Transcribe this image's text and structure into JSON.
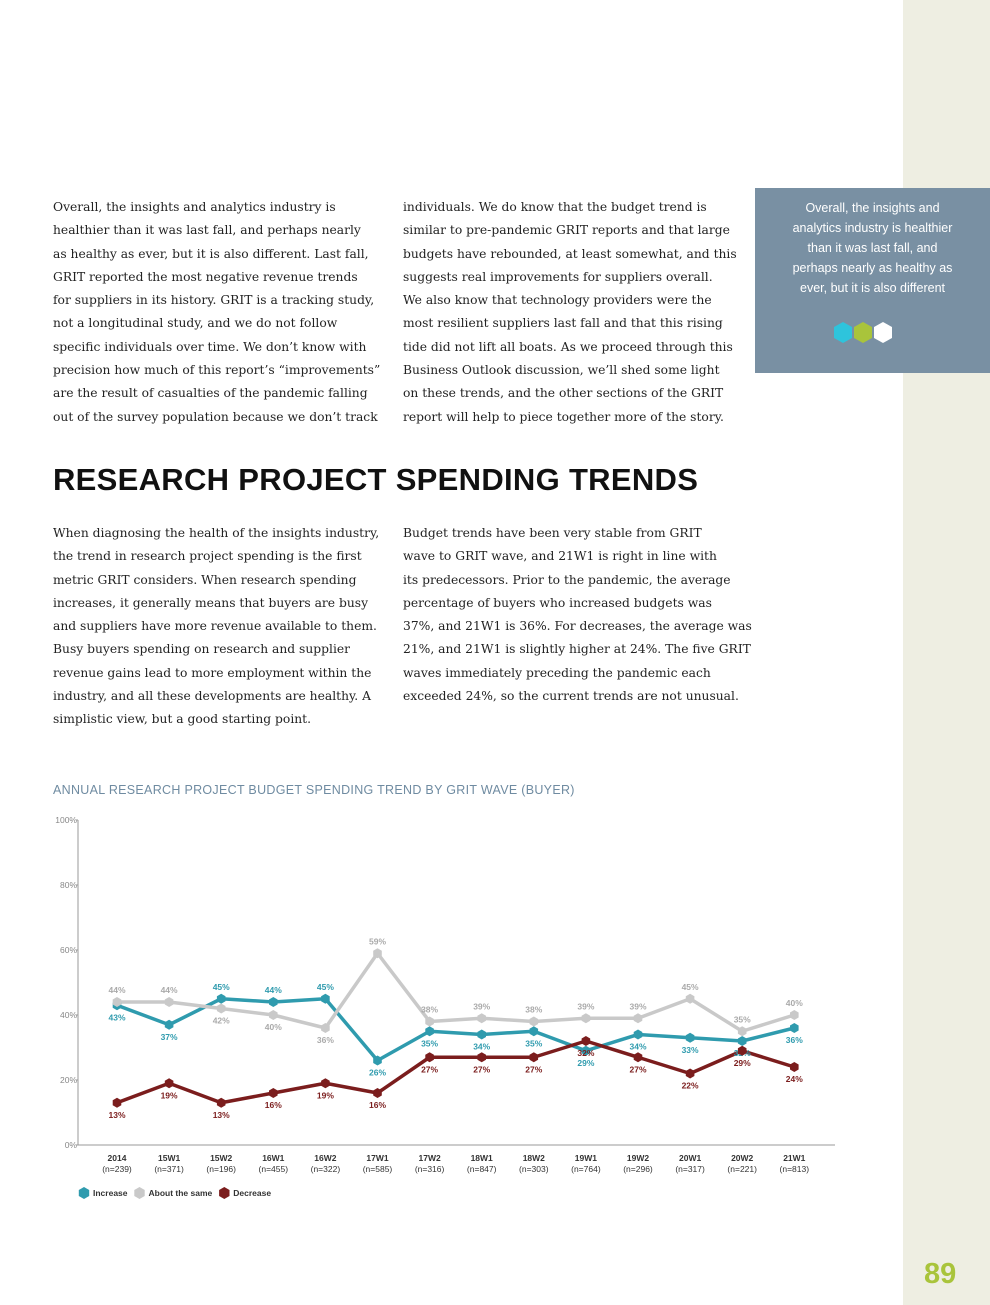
{
  "intro": {
    "left": [
      "Overall, the insights and analytics industry is",
      "healthier than it was last fall, and perhaps nearly",
      "as healthy as ever, but it is also different. Last fall,",
      "GRIT reported the most negative revenue trends",
      "for suppliers in its history. GRIT is a tracking study,",
      "not a longitudinal study, and we do not follow",
      "specific individuals over time. We don’t know with",
      "precision how much of this report’s “improvements”",
      "are the result of casualties of the pandemic falling",
      "out of the survey population because we don’t track"
    ],
    "right": [
      "individuals. We do know that the budget trend is",
      "similar to pre-pandemic GRIT reports and that large",
      "budgets have rebounded, at least somewhat, and this",
      "suggests real improvements for suppliers overall.",
      "We also know that technology providers were the",
      "most resilient suppliers last fall and that this rising",
      "tide did not lift all boats. As we proceed through this",
      "Business Outlook discussion, we’ll shed some light",
      "on these trends, and the other sections of the GRIT",
      "report will help to piece together more of the story."
    ]
  },
  "pull_quote": [
    "Overall, the insights and",
    "analytics industry is healthier",
    "than it was last fall, and",
    "perhaps nearly as healthy as",
    "ever, but it is also different"
  ],
  "section": {
    "title": "RESEARCH PROJECT SPENDING TRENDS",
    "left": [
      "When diagnosing the health of the insights industry,",
      "the trend in research project spending is the first",
      "metric GRIT considers. When research spending",
      "increases, it generally means that buyers are busy",
      "and suppliers have more revenue available to them.",
      "Busy buyers spending on research and supplier",
      "revenue gains lead to more employment within the",
      "industry, and all these developments are healthy. A",
      "simplistic view, but a good starting point."
    ],
    "right": [
      "Budget trends have been very stable from GRIT",
      "wave to GRIT wave, and 21W1 is right in line with",
      "its predecessors. Prior to the pandemic, the average",
      "percentage of buyers who increased budgets was",
      "37%, and 21W1 is 36%. For decreases, the average was",
      "21%, and 21W1 is slightly higher at 24%. The five GRIT",
      "waves immediately preceding the pandemic each",
      "exceeded 24%, so the current trends are not unusual."
    ]
  },
  "chart_data": {
    "type": "line",
    "title": "ANNUAL RESEARCH PROJECT BUDGET SPENDING TREND BY GRIT WAVE (BUYER)",
    "categories": [
      "2014",
      "15W1",
      "15W2",
      "16W1",
      "16W2",
      "17W1",
      "17W2",
      "18W1",
      "18W2",
      "19W1",
      "19W2",
      "20W1",
      "20W2",
      "21W1"
    ],
    "sample_sizes": [
      "(n=239)",
      "(n=371)",
      "(n=196)",
      "(n=455)",
      "(n=322)",
      "(n=585)",
      "(n=316)",
      "(n=847)",
      "(n=303)",
      "(n=764)",
      "(n=296)",
      "(n=317)",
      "(n=221)",
      "(n=813)"
    ],
    "ylim": [
      0,
      100
    ],
    "yticks": [
      {
        "value": 0,
        "label": "0%"
      },
      {
        "value": 20,
        "label": "20%"
      },
      {
        "value": 40,
        "label": "40%"
      },
      {
        "value": 60,
        "label": "60%"
      },
      {
        "value": 80,
        "label": "80%"
      },
      {
        "value": 100,
        "label": "100%"
      }
    ],
    "grid": false,
    "series": [
      {
        "name": "Increase",
        "color": "#2f9bae",
        "values": [
          43,
          37,
          45,
          44,
          45,
          26,
          35,
          34,
          35,
          29,
          34,
          33,
          32,
          36
        ],
        "value_labels": [
          "43%",
          "37%",
          "45%",
          "44%",
          "45%",
          "26%",
          "35%",
          "34%",
          "35%",
          "29%",
          "34%",
          "33%",
          "32%",
          "36%"
        ]
      },
      {
        "name": "About the same",
        "color": "#c9c9c9",
        "values": [
          44,
          44,
          42,
          40,
          36,
          59,
          38,
          39,
          38,
          39,
          39,
          45,
          35,
          40
        ],
        "value_labels": [
          "44%",
          "44%",
          "42%",
          "40%",
          "36%",
          "59%",
          "38%",
          "39%",
          "38%",
          "39%",
          "39%",
          "45%",
          "35%",
          "40%"
        ]
      },
      {
        "name": "Decrease",
        "color": "#7b1d1d",
        "values": [
          13,
          19,
          13,
          16,
          19,
          16,
          27,
          27,
          27,
          32,
          27,
          22,
          29,
          24
        ],
        "value_labels": [
          "13%",
          "19%",
          "13%",
          "16%",
          "19%",
          "16%",
          "27%",
          "27%",
          "27%",
          "32%",
          "27%",
          "22%",
          "29%",
          "24%"
        ]
      }
    ]
  },
  "page_number": "89"
}
